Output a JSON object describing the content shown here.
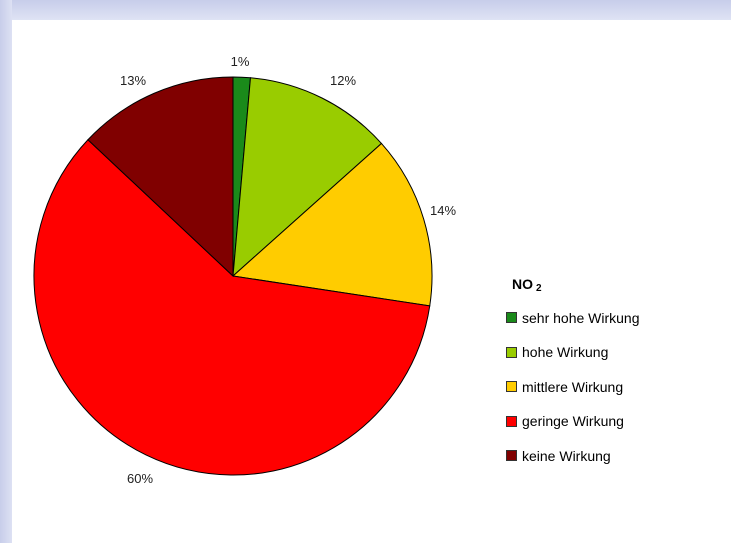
{
  "chart_data": {
    "type": "pie",
    "legend_title": "NO",
    "legend_title_sub": "2",
    "legend_position": "right",
    "start_angle": "top",
    "direction": "clockwise",
    "slices": [
      {
        "label": "sehr hohe Wirkung",
        "value": 1.4,
        "display": "1%",
        "color": "#1a8a1a"
      },
      {
        "label": "hohe Wirkung",
        "value": 12,
        "display": "12%",
        "color": "#99cc00"
      },
      {
        "label": "mittlere Wirkung",
        "value": 14,
        "display": "14%",
        "color": "#ffcc00"
      },
      {
        "label": "geringe Wirkung",
        "value": 59.6,
        "display": "60%",
        "color": "#ff0000"
      },
      {
        "label": "keine Wirkung",
        "value": 13,
        "display": "13%",
        "color": "#800000"
      }
    ]
  }
}
